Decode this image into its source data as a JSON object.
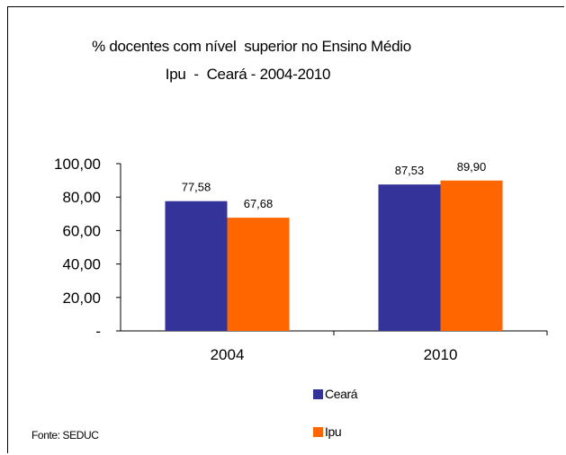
{
  "chart_data": {
    "type": "bar",
    "title": "% docentes com nível  superior no Ensino Médio",
    "subtitle": "Ipu  -  Ceará - 2004-2010",
    "categories": [
      "2004",
      "2010"
    ],
    "series": [
      {
        "name": "Ceará",
        "values": [
          77.58,
          87.53
        ],
        "labels": [
          "77,58",
          "87,53"
        ],
        "color": "#333399"
      },
      {
        "name": "Ipu",
        "values": [
          67.68,
          89.9
        ],
        "labels": [
          "67,68",
          "89,90"
        ],
        "color": "#ff6600"
      }
    ],
    "yticks": [
      "-",
      "20,00",
      "40,00",
      "60,00",
      "80,00",
      "100,00"
    ],
    "ylim": [
      0,
      100
    ],
    "grid": false,
    "legend_position": "bottom"
  },
  "source": "Fonte: SEDUC"
}
